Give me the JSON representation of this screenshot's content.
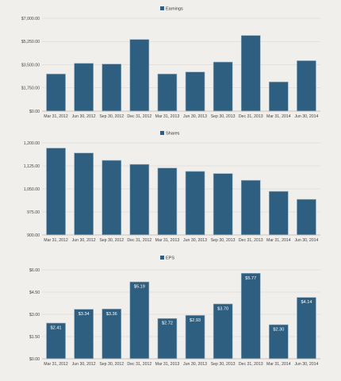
{
  "chart_data": [
    {
      "type": "bar",
      "categories": [
        "Mar 31, 2012",
        "Jun 30, 2012",
        "Sep 30, 2012",
        "Dec 31, 2012",
        "Mar 31, 2013",
        "Jun 30, 2013",
        "Sep 30, 2013",
        "Dec 31, 2013",
        "Mar 31, 2014",
        "Jun 30, 2014"
      ],
      "series": [
        {
          "name": "Earnings",
          "values": [
            2800,
            3600,
            3550,
            5400,
            2800,
            2950,
            3700,
            5700,
            2200,
            3800
          ]
        }
      ],
      "ylim": [
        0,
        7000
      ],
      "yticks": [
        "$0.00",
        "$1,750.00",
        "$3,500.00",
        "$5,250.00",
        "$7,000.00"
      ],
      "ytick_values": [
        0,
        1750,
        3500,
        5250,
        7000
      ],
      "legend_position": "top-center",
      "bar_labels": [],
      "grid": true
    },
    {
      "type": "bar",
      "categories": [
        "Mar 31, 2012",
        "Jun 30, 2012",
        "Sep 30, 2012",
        "Dec 31, 2012",
        "Mar 31, 2013",
        "Jun 30, 2013",
        "Sep 30, 2013",
        "Dec 31, 2013",
        "Mar 31, 2014",
        "Jun 30, 2014"
      ],
      "series": [
        {
          "name": "Shares",
          "values": [
            1183,
            1167,
            1143,
            1130,
            1118,
            1107,
            1100,
            1078,
            1042,
            1016
          ]
        }
      ],
      "ylim": [
        900,
        1200
      ],
      "yticks": [
        "900.00",
        "975.00",
        "1,050.00",
        "1,125.00",
        "1,200.00"
      ],
      "ytick_values": [
        900,
        975,
        1050,
        1125,
        1200
      ],
      "legend_position": "top-center",
      "bar_labels": [],
      "grid": true
    },
    {
      "type": "bar",
      "categories": [
        "Mar 31, 2012",
        "Jun 30, 2012",
        "Sep 30, 2012",
        "Dec 31, 2012",
        "Mar 31, 2013",
        "Jun 30, 2013",
        "Sep 30, 2013",
        "Dec 31, 2013",
        "Mar 31, 2014",
        "Jun 30, 2014"
      ],
      "series": [
        {
          "name": "EPS",
          "values": [
            2.41,
            3.34,
            3.36,
            5.19,
            2.72,
            2.93,
            3.7,
            5.77,
            2.3,
            4.14
          ]
        }
      ],
      "ylim": [
        0,
        6
      ],
      "yticks": [
        "$0.00",
        "$1.50",
        "$3.00",
        "$4.50",
        "$6.00"
      ],
      "ytick_values": [
        0,
        1.5,
        3,
        4.5,
        6
      ],
      "legend_position": "top-center",
      "bar_labels": [
        "$2.41",
        "$3.34",
        "$3.36",
        "$5.19",
        "$2.72",
        "$2.93",
        "$3.70",
        "$5.77",
        "$2.30",
        "$4.14"
      ],
      "grid": true
    }
  ],
  "colors": {
    "bar": "#2f5f80",
    "bar_stroke": "#8fb0c6",
    "grid": "#d6d3cf",
    "background": "#f1efec",
    "legend_swatch": "#2f5f80"
  }
}
